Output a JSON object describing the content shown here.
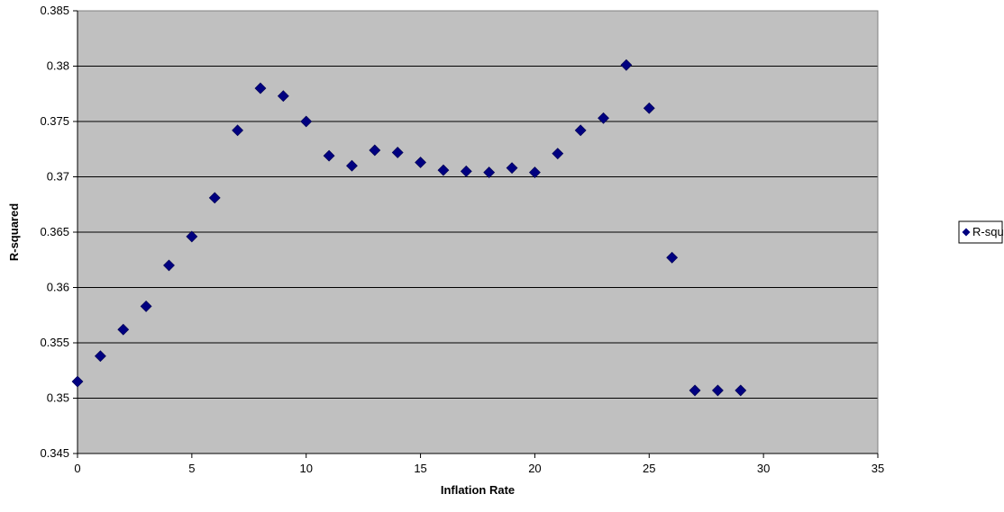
{
  "chart_data": {
    "type": "scatter",
    "title": "",
    "xlabel": "Inflation Rate",
    "ylabel": "R-squared",
    "xlim": [
      0,
      35
    ],
    "ylim": [
      0.345,
      0.385
    ],
    "x_ticks": [
      0,
      5,
      10,
      15,
      20,
      25,
      30,
      35
    ],
    "y_ticks": [
      0.345,
      0.35,
      0.355,
      0.36,
      0.365,
      0.37,
      0.375,
      0.38,
      0.385
    ],
    "x_tick_labels": [
      "0",
      "5",
      "10",
      "15",
      "20",
      "25",
      "30",
      "35"
    ],
    "y_tick_labels": [
      "0.345",
      "0.35",
      "0.355",
      "0.36",
      "0.365",
      "0.37",
      "0.375",
      "0.38",
      "0.385"
    ],
    "grid": "horizontal",
    "legend_position": "right",
    "plot_background": "#c0c0c0",
    "series": [
      {
        "name": "R-squared",
        "color": "#000080",
        "marker": "diamond",
        "x": [
          0,
          1,
          2,
          3,
          4,
          5,
          6,
          7,
          8,
          9,
          10,
          11,
          12,
          13,
          14,
          15,
          16,
          17,
          18,
          19,
          20,
          21,
          22,
          23,
          24,
          25,
          26,
          27,
          28,
          29
        ],
        "y": [
          0.3515,
          0.3538,
          0.3562,
          0.3583,
          0.362,
          0.3646,
          0.3681,
          0.3742,
          0.378,
          0.3773,
          0.375,
          0.3719,
          0.371,
          0.3724,
          0.3722,
          0.3713,
          0.3706,
          0.3705,
          0.3704,
          0.3708,
          0.3704,
          0.3721,
          0.3742,
          0.3753,
          0.3801,
          0.3762,
          0.3627,
          0.3507,
          0.3507,
          0.3507
        ]
      }
    ]
  }
}
